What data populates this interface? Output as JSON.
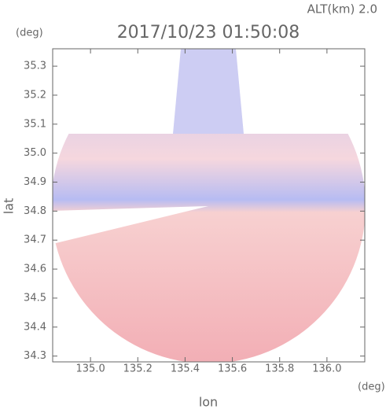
{
  "chart_data": {
    "type": "radar-image",
    "title": "2017/10/23 01:50:08",
    "altitude_label": "ALT(km) 2.0",
    "x_label": "lon",
    "y_label": "lat",
    "x_unit": "(deg)",
    "y_unit": "(deg)",
    "xlim": [
      134.84,
      136.16
    ],
    "ylim": [
      34.28,
      35.36
    ],
    "xticks": [
      {
        "value": 135,
        "label": "135.0"
      },
      135.2,
      135.4,
      135.6,
      135.8,
      {
        "value": 136,
        "label": "136.0"
      }
    ],
    "yticks": [
      34.3,
      34.4,
      34.5,
      34.6,
      34.7,
      34.8,
      34.9,
      {
        "value": 35,
        "label": "35.0"
      },
      35.1,
      35.2,
      35.3
    ]
  }
}
